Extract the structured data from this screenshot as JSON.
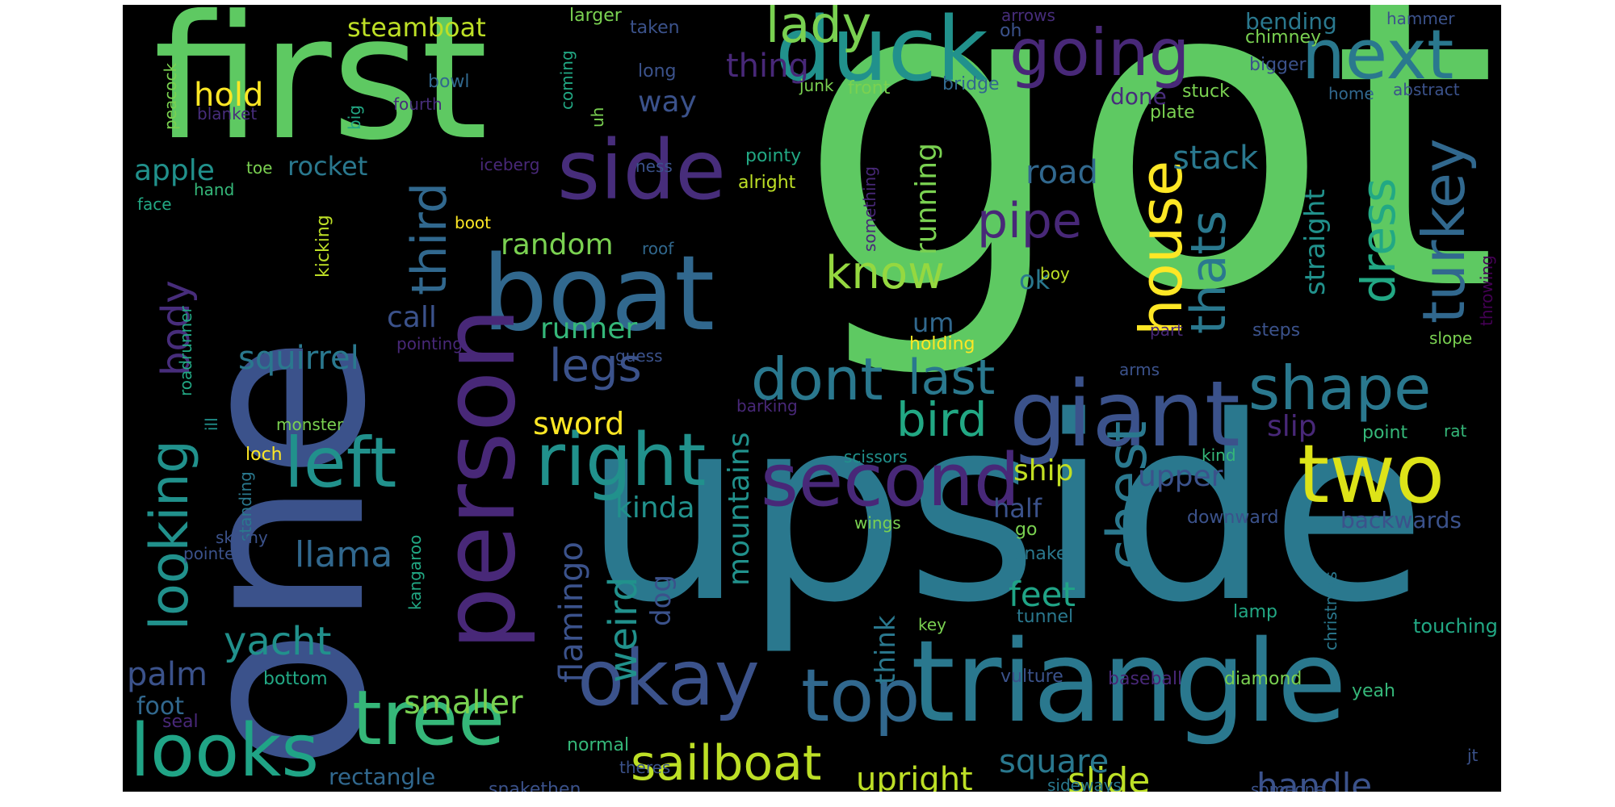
{
  "words": [
    {
      "text": "got",
      "color": "#5ec962",
      "vertical": false
    },
    {
      "text": "upside",
      "color": "#2a788e",
      "vertical": false
    },
    {
      "text": "one",
      "color": "#3b528b",
      "vertical": true
    },
    {
      "text": "first",
      "color": "#5ec962",
      "vertical": false
    },
    {
      "text": "triangle",
      "color": "#2a788e",
      "vertical": false
    },
    {
      "text": "boat",
      "color": "#31688e",
      "vertical": false
    },
    {
      "text": "person",
      "color": "#482878",
      "vertical": true
    },
    {
      "text": "two",
      "color": "#dde318",
      "vertical": false
    },
    {
      "text": "giant",
      "color": "#3b528b",
      "vertical": false
    },
    {
      "text": "duck",
      "color": "#21918c",
      "vertical": false
    },
    {
      "text": "tree",
      "color": "#35b779",
      "vertical": false
    },
    {
      "text": "okay",
      "color": "#3b528b",
      "vertical": false
    },
    {
      "text": "second",
      "color": "#482878",
      "vertical": false
    },
    {
      "text": "side",
      "color": "#472d7b",
      "vertical": false
    },
    {
      "text": "top",
      "color": "#31688e",
      "vertical": false
    },
    {
      "text": "right",
      "color": "#21918c",
      "vertical": false
    },
    {
      "text": "looks",
      "color": "#20a486",
      "vertical": false
    },
    {
      "text": "left",
      "color": "#21918c",
      "vertical": false
    },
    {
      "text": "next",
      "color": "#2a788e",
      "vertical": false
    },
    {
      "text": "going",
      "color": "#482878",
      "vertical": false
    },
    {
      "text": "shape",
      "color": "#2a788e",
      "vertical": false
    },
    {
      "text": "looking",
      "color": "#21918c",
      "vertical": true
    },
    {
      "text": "house",
      "color": "#fde725",
      "vertical": true
    },
    {
      "text": "chest",
      "color": "#2a788e",
      "vertical": true
    },
    {
      "text": "turkey",
      "color": "#31688e",
      "vertical": true
    },
    {
      "text": "dont",
      "color": "#2a788e",
      "vertical": false
    },
    {
      "text": "lady",
      "color": "#7ad151",
      "vertical": false
    },
    {
      "text": "third",
      "color": "#31688e",
      "vertical": true
    },
    {
      "text": "thats",
      "color": "#2a788e",
      "vertical": true
    },
    {
      "text": "sailboat",
      "color": "#bddf26",
      "vertical": false
    },
    {
      "text": "last",
      "color": "#2a788e",
      "vertical": false
    },
    {
      "text": "bird",
      "color": "#22a884",
      "vertical": false
    },
    {
      "text": "dress",
      "color": "#22a884",
      "vertical": true
    },
    {
      "text": "pipe",
      "color": "#482878",
      "vertical": false
    },
    {
      "text": "know",
      "color": "#95d840",
      "vertical": false
    },
    {
      "text": "legs",
      "color": "#3b528b",
      "vertical": false
    },
    {
      "text": "yacht",
      "color": "#21918c",
      "vertical": false
    },
    {
      "text": "weird",
      "color": "#21918c",
      "vertical": true
    },
    {
      "text": "flamingo",
      "color": "#3b528b",
      "vertical": true
    },
    {
      "text": "body",
      "color": "#472d7b",
      "vertical": true
    },
    {
      "text": "llama",
      "color": "#31688e",
      "vertical": false
    },
    {
      "text": "squirrel",
      "color": "#2a788e",
      "vertical": false
    },
    {
      "text": "palm",
      "color": "#3b528b",
      "vertical": false
    },
    {
      "text": "handle",
      "color": "#3b528b",
      "vertical": false
    },
    {
      "text": "slide",
      "color": "#bddf26",
      "vertical": false
    },
    {
      "text": "upright",
      "color": "#bddf26",
      "vertical": false
    },
    {
      "text": "square",
      "color": "#2a788e",
      "vertical": false
    },
    {
      "text": "smaller",
      "color": "#7ad151",
      "vertical": false
    },
    {
      "text": "feet",
      "color": "#20a486",
      "vertical": false
    },
    {
      "text": "ship",
      "color": "#c2df23",
      "vertical": false
    },
    {
      "text": "upper",
      "color": "#3b528b",
      "vertical": false
    },
    {
      "text": "slip",
      "color": "#482878",
      "vertical": false
    },
    {
      "text": "road",
      "color": "#31688e",
      "vertical": false
    },
    {
      "text": "stack",
      "color": "#2a788e",
      "vertical": false
    },
    {
      "text": "sword",
      "color": "#fde725",
      "vertical": false
    },
    {
      "text": "steamboat",
      "color": "#bddf26",
      "vertical": false
    },
    {
      "text": "rocket",
      "color": "#2a788e",
      "vertical": false
    },
    {
      "text": "apple",
      "color": "#21918c",
      "vertical": false
    },
    {
      "text": "hold",
      "color": "#fde725",
      "vertical": false
    },
    {
      "text": "thing",
      "color": "#482878",
      "vertical": false
    },
    {
      "text": "random",
      "color": "#7ad151",
      "vertical": false
    },
    {
      "text": "runner",
      "color": "#35b779",
      "vertical": false
    },
    {
      "text": "running",
      "color": "#7ad151",
      "vertical": true
    },
    {
      "text": "mountains",
      "color": "#21918c",
      "vertical": true
    },
    {
      "text": "kinda",
      "color": "#21918c",
      "vertical": false
    },
    {
      "text": "half",
      "color": "#3b528b",
      "vertical": false
    },
    {
      "text": "call",
      "color": "#3b528b",
      "vertical": false
    },
    {
      "text": "way",
      "color": "#3b528b",
      "vertical": false
    },
    {
      "text": "straight",
      "color": "#21918c",
      "vertical": true
    },
    {
      "text": "backwards",
      "color": "#3b528b",
      "vertical": false
    },
    {
      "text": "dog",
      "color": "#3b528b",
      "vertical": true
    },
    {
      "text": "think",
      "color": "#2a788e",
      "vertical": true
    },
    {
      "text": "um",
      "color": "#31688e",
      "vertical": false
    },
    {
      "text": "ok",
      "color": "#2a788e",
      "vertical": false
    },
    {
      "text": "foot",
      "color": "#31688e",
      "vertical": false
    },
    {
      "text": "rectangle",
      "color": "#31688e",
      "vertical": false
    },
    {
      "text": "done",
      "color": "#472d7b",
      "vertical": false
    },
    {
      "text": "bending",
      "color": "#2a788e",
      "vertical": false
    },
    {
      "text": "point",
      "color": "#35b779",
      "vertical": false
    },
    {
      "text": "touching",
      "color": "#22a884",
      "vertical": false
    },
    {
      "text": "larger",
      "color": "#7ad151",
      "vertical": false
    },
    {
      "text": "taken",
      "color": "#3b528b",
      "vertical": false
    },
    {
      "text": "arrows",
      "color": "#472d7b",
      "vertical": false
    },
    {
      "text": "oh",
      "color": "#3b528b",
      "vertical": false
    },
    {
      "text": "chimney",
      "color": "#7ad151",
      "vertical": false
    },
    {
      "text": "hammer",
      "color": "#3b528b",
      "vertical": false
    },
    {
      "text": "bigger",
      "color": "#3b528b",
      "vertical": false
    },
    {
      "text": "home",
      "color": "#31688e",
      "vertical": false
    },
    {
      "text": "abstract",
      "color": "#3b528b",
      "vertical": false
    },
    {
      "text": "long",
      "color": "#3b528b",
      "vertical": false
    },
    {
      "text": "junk",
      "color": "#7ad151",
      "vertical": false
    },
    {
      "text": "front",
      "color": "#7ad151",
      "vertical": false
    },
    {
      "text": "bridge",
      "color": "#31688e",
      "vertical": false
    },
    {
      "text": "stuck",
      "color": "#7ad151",
      "vertical": false
    },
    {
      "text": "plate",
      "color": "#7ad151",
      "vertical": false
    },
    {
      "text": "bowl",
      "color": "#31688e",
      "vertical": false
    },
    {
      "text": "peacock",
      "color": "#7ad151",
      "vertical": true
    },
    {
      "text": "blanket",
      "color": "#472d7b",
      "vertical": false
    },
    {
      "text": "fourth",
      "color": "#472d7b",
      "vertical": false
    },
    {
      "text": "big",
      "color": "#22a884",
      "vertical": true
    },
    {
      "text": "coming",
      "color": "#22a884",
      "vertical": true
    },
    {
      "text": "uh",
      "color": "#7ad151",
      "vertical": true
    },
    {
      "text": "iceberg",
      "color": "#482878",
      "vertical": false
    },
    {
      "text": "ness",
      "color": "#3b528b",
      "vertical": false
    },
    {
      "text": "pointy",
      "color": "#22a884",
      "vertical": false
    },
    {
      "text": "alright",
      "color": "#bddf26",
      "vertical": false
    },
    {
      "text": "toe",
      "color": "#7ad151",
      "vertical": false
    },
    {
      "text": "hand",
      "color": "#35b779",
      "vertical": false
    },
    {
      "text": "face",
      "color": "#22a884",
      "vertical": false
    },
    {
      "text": "boot",
      "color": "#fde725",
      "vertical": false
    },
    {
      "text": "kicking",
      "color": "#bddf26",
      "vertical": true
    },
    {
      "text": "roof",
      "color": "#31688e",
      "vertical": false
    },
    {
      "text": "something",
      "color": "#482878",
      "vertical": true
    },
    {
      "text": "boy",
      "color": "#bddf26",
      "vertical": false
    },
    {
      "text": "throwing",
      "color": "#440154",
      "vertical": true
    },
    {
      "text": "roadrunner",
      "color": "#22a884",
      "vertical": true
    },
    {
      "text": "pointing",
      "color": "#482878",
      "vertical": false
    },
    {
      "text": "guess",
      "color": "#3b528b",
      "vertical": false
    },
    {
      "text": "holding",
      "color": "#fde725",
      "vertical": false
    },
    {
      "text": "part",
      "color": "#482878",
      "vertical": false
    },
    {
      "text": "steps",
      "color": "#3b528b",
      "vertical": false
    },
    {
      "text": "slope",
      "color": "#7ad151",
      "vertical": false
    },
    {
      "text": "arms",
      "color": "#3b528b",
      "vertical": false
    },
    {
      "text": "barking",
      "color": "#482878",
      "vertical": false
    },
    {
      "text": "ill",
      "color": "#21918c",
      "vertical": true
    },
    {
      "text": "standing",
      "color": "#2a788e",
      "vertical": true
    },
    {
      "text": "monster",
      "color": "#7ad151",
      "vertical": false
    },
    {
      "text": "loch",
      "color": "#fde725",
      "vertical": false
    },
    {
      "text": "scissors",
      "color": "#21918c",
      "vertical": false
    },
    {
      "text": "kind",
      "color": "#35b779",
      "vertical": false
    },
    {
      "text": "rat",
      "color": "#35b779",
      "vertical": false
    },
    {
      "text": "kangaroo",
      "color": "#22a884",
      "vertical": true
    },
    {
      "text": "skinny",
      "color": "#3b528b",
      "vertical": false
    },
    {
      "text": "pointed",
      "color": "#3b528b",
      "vertical": false
    },
    {
      "text": "wings",
      "color": "#7ad151",
      "vertical": false
    },
    {
      "text": "go",
      "color": "#7ad151",
      "vertical": false
    },
    {
      "text": "downward",
      "color": "#3b528b",
      "vertical": false
    },
    {
      "text": "snake",
      "color": "#2a788e",
      "vertical": false
    },
    {
      "text": "christmas",
      "color": "#2a788e",
      "vertical": true
    },
    {
      "text": "key",
      "color": "#7ad151",
      "vertical": false
    },
    {
      "text": "tunnel",
      "color": "#2a788e",
      "vertical": false
    },
    {
      "text": "lamp",
      "color": "#22a884",
      "vertical": false
    },
    {
      "text": "bottom",
      "color": "#22a884",
      "vertical": false
    },
    {
      "text": "vulture",
      "color": "#3b528b",
      "vertical": false
    },
    {
      "text": "baseball",
      "color": "#482878",
      "vertical": false
    },
    {
      "text": "diamond",
      "color": "#7ad151",
      "vertical": false
    },
    {
      "text": "yeah",
      "color": "#35b779",
      "vertical": false
    },
    {
      "text": "seal",
      "color": "#482878",
      "vertical": false
    },
    {
      "text": "normal",
      "color": "#35b779",
      "vertical": false
    },
    {
      "text": "theres",
      "color": "#3b528b",
      "vertical": false
    },
    {
      "text": "snakethen",
      "color": "#3b528b",
      "vertical": false
    },
    {
      "text": "sideways",
      "color": "#2a788e",
      "vertical": false
    },
    {
      "text": "someone",
      "color": "#3b528b",
      "vertical": false
    },
    {
      "text": "jt",
      "color": "#3b528b",
      "vertical": false
    }
  ]
}
